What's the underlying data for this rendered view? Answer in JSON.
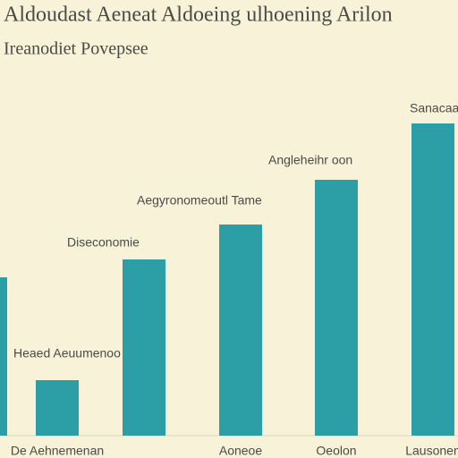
{
  "chart_data": {
    "type": "bar",
    "title": "Aldoudast Aeneat Aldoeing ulhoening Arilon",
    "subtitle": "Ireanodiet Povepsee",
    "categories": [
      null,
      "De Aehnemenan",
      null,
      "Aoneoe",
      "Oeolon",
      "Lausonen"
    ],
    "values": [
      177,
      62,
      197,
      236,
      286,
      349
    ],
    "color": "#2b9ea6",
    "annotations": [
      "Heaed Aeuumenoo",
      "Diseconomie",
      "Aegyronomeoutl Tame",
      "Angleheihr oon",
      "Sanacaa"
    ]
  }
}
